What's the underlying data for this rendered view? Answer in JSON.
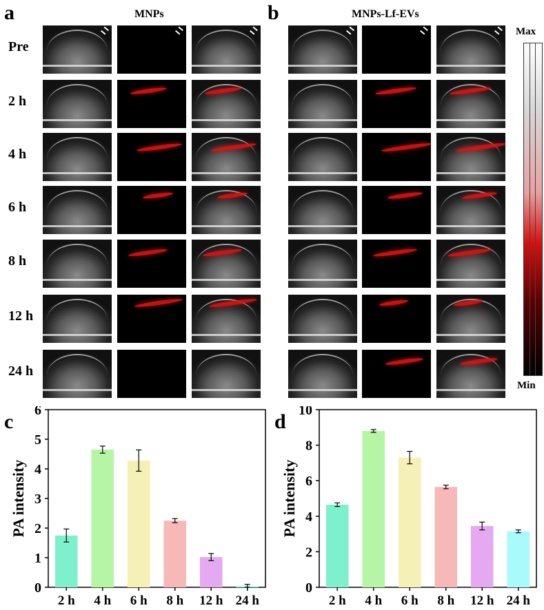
{
  "panels": {
    "a": {
      "letter": "a",
      "title": "MNPs"
    },
    "b": {
      "letter": "b",
      "title": "MNPs-Lf-EVs"
    },
    "c": {
      "letter": "c"
    },
    "d": {
      "letter": "d"
    }
  },
  "time_rows": [
    "Pre",
    "2 h",
    "4 h",
    "6 h",
    "8 h",
    "12 h",
    "24 h"
  ],
  "colorbar": {
    "max_label": "Max",
    "min_label": "Min"
  },
  "chart_data": [
    {
      "type": "bar",
      "panel": "c",
      "categories": [
        "2 h",
        "4 h",
        "6 h",
        "8 h",
        "12 h",
        "24 h"
      ],
      "values": [
        1.75,
        4.65,
        4.28,
        2.25,
        1.02,
        0.05
      ],
      "errors": [
        0.22,
        0.12,
        0.36,
        0.07,
        0.12,
        0.05
      ],
      "colors": [
        "#7ef0cb",
        "#b5f5a5",
        "#f5f0b5",
        "#f7b8b8",
        "#e5a9f2",
        "#a9fafa"
      ],
      "ylabel": "PA intensity",
      "ylim": [
        0,
        6
      ],
      "yticks": [
        0,
        1,
        2,
        3,
        4,
        5,
        6
      ]
    },
    {
      "type": "bar",
      "panel": "d",
      "categories": [
        "2 h",
        "4 h",
        "6 h",
        "8 h",
        "12 h",
        "24 h"
      ],
      "values": [
        4.65,
        8.8,
        7.3,
        5.65,
        3.45,
        3.15
      ],
      "errors": [
        0.1,
        0.08,
        0.35,
        0.1,
        0.22,
        0.08
      ],
      "colors": [
        "#7ef0cb",
        "#b5f5a5",
        "#f5f0b5",
        "#f7b8b8",
        "#e5a9f2",
        "#a9fafa"
      ],
      "ylabel": "PA intensity",
      "ylim": [
        0,
        10
      ],
      "yticks": [
        0,
        2,
        4,
        6,
        8,
        10
      ]
    }
  ]
}
